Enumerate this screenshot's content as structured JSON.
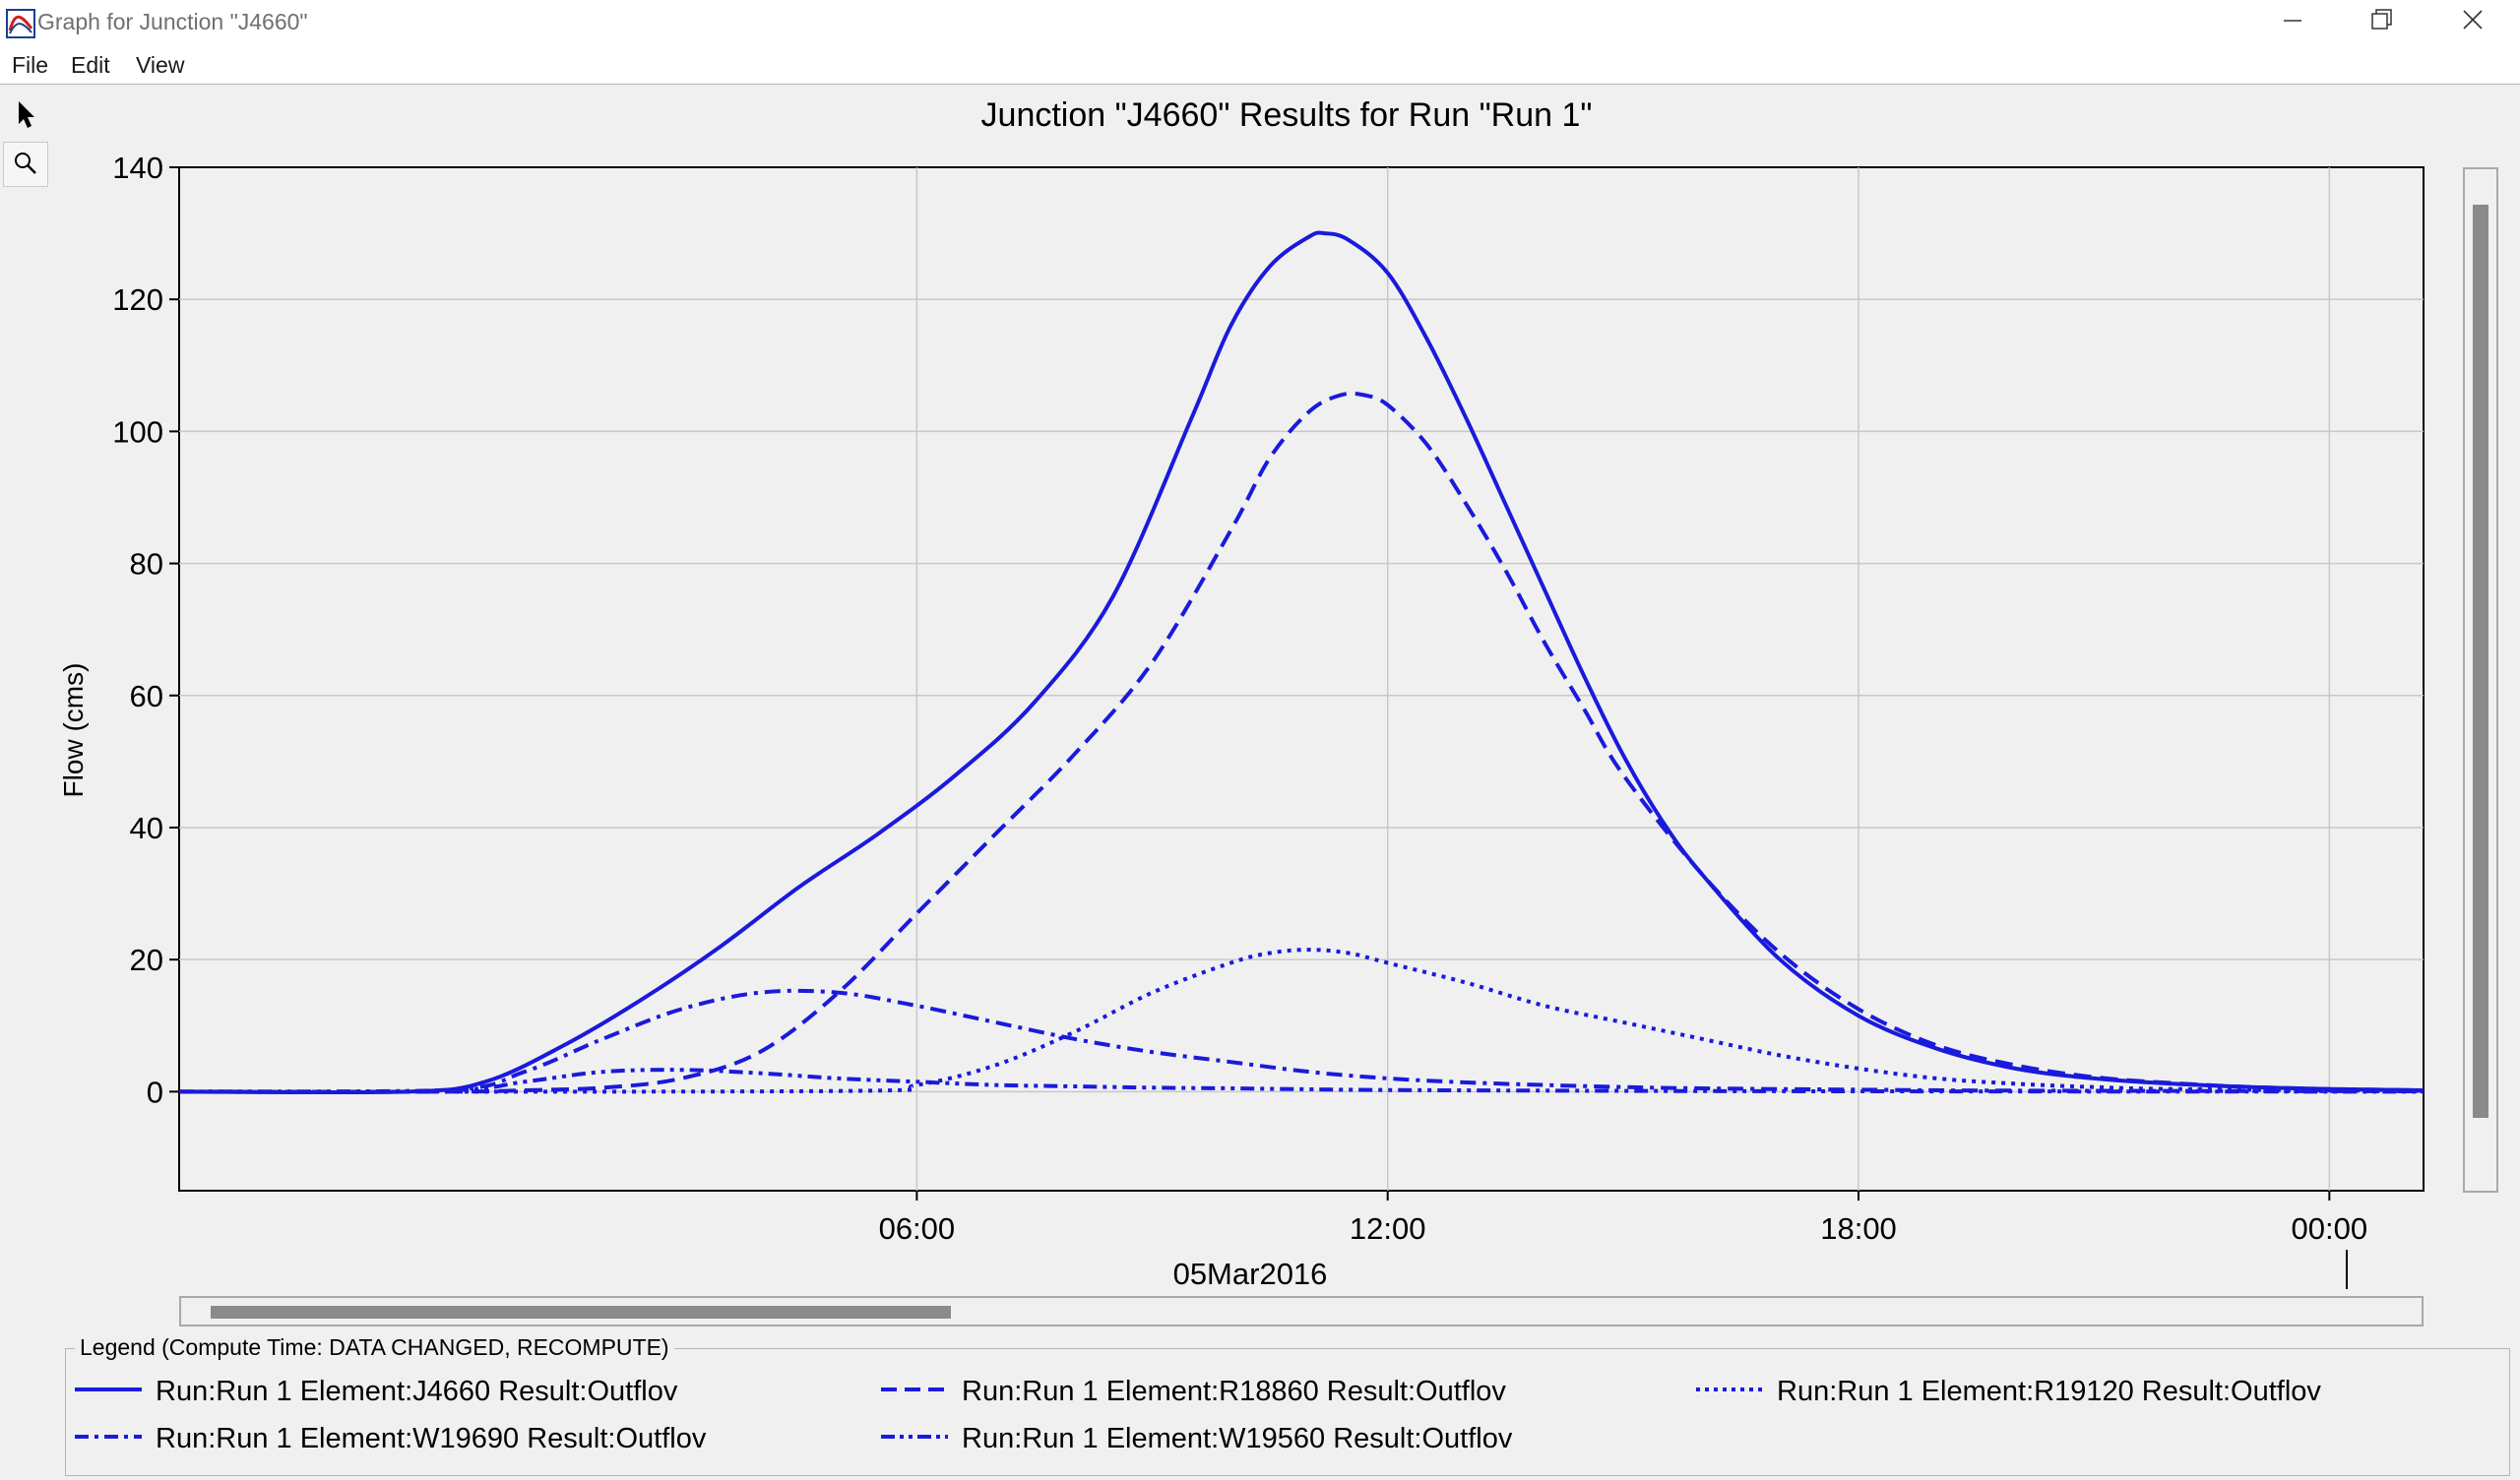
{
  "window": {
    "title": "Graph for Junction \"J4660\"",
    "icon": "hec-hms-graph-icon",
    "controls": [
      "minimize-icon",
      "restore-icon",
      "close-icon"
    ]
  },
  "menu": {
    "file": "File",
    "edit": "Edit",
    "view": "View"
  },
  "tools": [
    "pointer-arrow-icon",
    "zoom-magnifier-icon"
  ],
  "colors": {
    "series": "#1a1adc",
    "grid": "#c8c8c8",
    "scrollbar_thumb": "#8a8a8a"
  },
  "legend": {
    "title": "Legend (Compute Time: DATA CHANGED, RECOMPUTE)",
    "items": [
      {
        "label": "Run:Run 1 Element:J4660 Result:Outflov",
        "style": "solid"
      },
      {
        "label": "Run:Run 1 Element:R18860 Result:Outflov",
        "style": "dashed"
      },
      {
        "label": "Run:Run 1 Element:R19120 Result:Outflov",
        "style": "dotted"
      },
      {
        "label": "Run:Run 1 Element:W19690 Result:Outflov",
        "style": "dash-dot"
      },
      {
        "label": "Run:Run 1 Element:W19560 Result:Outflov",
        "style": "dash-dot-dot"
      }
    ]
  },
  "chart_data": {
    "type": "line",
    "title": "Junction \"J4660\" Results for Run \"Run 1\"",
    "ylabel": "Flow (cms)",
    "xlabel": "05Mar2016",
    "x_unit": "hours after 05Mar2016 00:00",
    "xlim": [
      -3.4,
      25.2
    ],
    "ylim": [
      -15,
      140
    ],
    "yticks": [
      0,
      20,
      40,
      60,
      80,
      100,
      120,
      140
    ],
    "xticks": [
      {
        "value": 6,
        "label": "06:00"
      },
      {
        "value": 12,
        "label": "12:00"
      },
      {
        "value": 18,
        "label": "18:00"
      },
      {
        "value": 24,
        "label": "00:00"
      }
    ],
    "grid": true,
    "legend_position": "bottom",
    "series": [
      {
        "name": "Run:Run 1 Element:J4660 Result:Outflov",
        "style": "solid",
        "points": [
          [
            -3.4,
            0
          ],
          [
            -0.5,
            0
          ],
          [
            0.5,
            1.5
          ],
          [
            1.5,
            7
          ],
          [
            2.5,
            14
          ],
          [
            3.5,
            22
          ],
          [
            4.5,
            31
          ],
          [
            5.5,
            39
          ],
          [
            6.5,
            48
          ],
          [
            7.5,
            59
          ],
          [
            8.5,
            75
          ],
          [
            9.5,
            102
          ],
          [
            10,
            116
          ],
          [
            10.5,
            125
          ],
          [
            11,
            129.5
          ],
          [
            11.2,
            130
          ],
          [
            11.5,
            129
          ],
          [
            12,
            124
          ],
          [
            12.5,
            114
          ],
          [
            13,
            102
          ],
          [
            13.5,
            89
          ],
          [
            14,
            76
          ],
          [
            14.5,
            63
          ],
          [
            15,
            51
          ],
          [
            15.5,
            41
          ],
          [
            16,
            33
          ],
          [
            17,
            20
          ],
          [
            18,
            11.5
          ],
          [
            19,
            6.5
          ],
          [
            20,
            3.5
          ],
          [
            21,
            2
          ],
          [
            22,
            1.2
          ],
          [
            23,
            0.7
          ],
          [
            24,
            0.4
          ],
          [
            25.2,
            0.2
          ]
        ]
      },
      {
        "name": "Run:Run 1 Element:R18860 Result:Outflov",
        "style": "dashed",
        "points": [
          [
            -3.4,
            0
          ],
          [
            0,
            0
          ],
          [
            1,
            0.2
          ],
          [
            2,
            0.6
          ],
          [
            3,
            2
          ],
          [
            4,
            6
          ],
          [
            5,
            15
          ],
          [
            6,
            27
          ],
          [
            7,
            39
          ],
          [
            8,
            51
          ],
          [
            9,
            65
          ],
          [
            10,
            85
          ],
          [
            10.5,
            96
          ],
          [
            11,
            103
          ],
          [
            11.4,
            105.5
          ],
          [
            11.7,
            105.5
          ],
          [
            12,
            104
          ],
          [
            12.5,
            98
          ],
          [
            13,
            89
          ],
          [
            13.5,
            79
          ],
          [
            14,
            68
          ],
          [
            14.5,
            58
          ],
          [
            15,
            48
          ],
          [
            16,
            33
          ],
          [
            17,
            21
          ],
          [
            18,
            12.5
          ],
          [
            19,
            7
          ],
          [
            20,
            4
          ],
          [
            21,
            2.2
          ],
          [
            22,
            1.3
          ],
          [
            23,
            0.7
          ],
          [
            24,
            0.4
          ],
          [
            25.2,
            0.2
          ]
        ]
      },
      {
        "name": "Run:Run 1 Element:R19120 Result:Outflov",
        "style": "dotted",
        "points": [
          [
            -3.4,
            0
          ],
          [
            5,
            0.1
          ],
          [
            6,
            1
          ],
          [
            7,
            4
          ],
          [
            8,
            9
          ],
          [
            9,
            15
          ],
          [
            10,
            19.5
          ],
          [
            10.5,
            21
          ],
          [
            11,
            21.5
          ],
          [
            11.5,
            21
          ],
          [
            12,
            19.5
          ],
          [
            13,
            16.5
          ],
          [
            14,
            13
          ],
          [
            15,
            10.5
          ],
          [
            16,
            8
          ],
          [
            17,
            5.5
          ],
          [
            18,
            3.5
          ],
          [
            19,
            2
          ],
          [
            20,
            1.2
          ],
          [
            21,
            0.7
          ],
          [
            22,
            0.4
          ],
          [
            25.2,
            0.1
          ]
        ]
      },
      {
        "name": "Run:Run 1 Element:W19690 Result:Outflov",
        "style": "dash-dot",
        "points": [
          [
            -3.4,
            0
          ],
          [
            0,
            0.2
          ],
          [
            1,
            3
          ],
          [
            2,
            8
          ],
          [
            3,
            12.5
          ],
          [
            4,
            15
          ],
          [
            5,
            15
          ],
          [
            6,
            13
          ],
          [
            7,
            10.5
          ],
          [
            8,
            8
          ],
          [
            9,
            6
          ],
          [
            10,
            4.5
          ],
          [
            11,
            3
          ],
          [
            12,
            2
          ],
          [
            13,
            1.4
          ],
          [
            14,
            1
          ],
          [
            15,
            0.7
          ],
          [
            16,
            0.5
          ],
          [
            18,
            0.3
          ],
          [
            20,
            0.15
          ],
          [
            25.2,
            0.05
          ]
        ]
      },
      {
        "name": "Run:Run 1 Element:W19560 Result:Outflov",
        "style": "dash-dot-dot",
        "points": [
          [
            -3.4,
            0
          ],
          [
            0,
            0.2
          ],
          [
            1,
            1.5
          ],
          [
            2,
            3
          ],
          [
            3,
            3.3
          ],
          [
            4,
            2.8
          ],
          [
            5,
            2
          ],
          [
            6,
            1.5
          ],
          [
            7,
            1
          ],
          [
            8,
            0.8
          ],
          [
            9,
            0.6
          ],
          [
            10,
            0.5
          ],
          [
            11,
            0.35
          ],
          [
            12,
            0.25
          ],
          [
            14,
            0.15
          ],
          [
            18,
            0.05
          ],
          [
            25.2,
            0
          ]
        ]
      }
    ]
  }
}
